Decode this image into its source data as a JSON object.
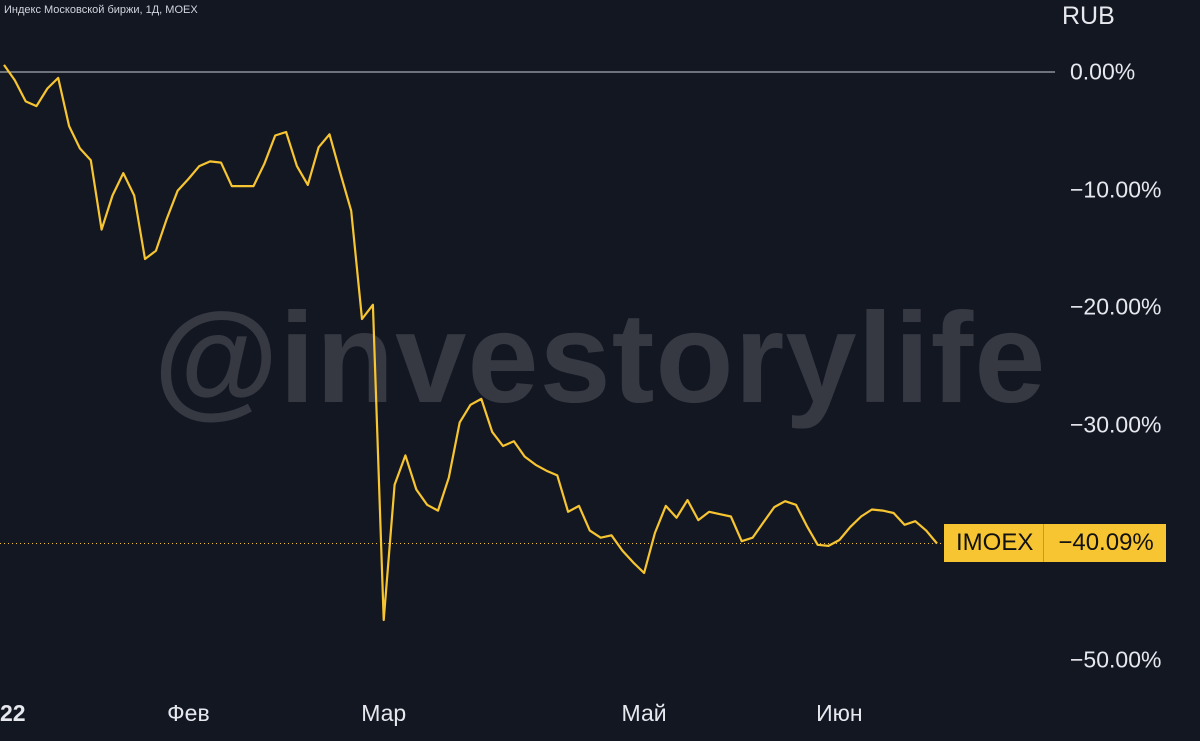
{
  "chart_data": {
    "type": "line",
    "title": "Индекс Московской биржи, 1Д, MOEX",
    "currency": "RUB",
    "watermark": "@investorylife",
    "ylim": [
      -52,
      3
    ],
    "y_ticks": [
      0,
      -10,
      -20,
      -30,
      -50
    ],
    "y_tick_labels": [
      "0.00%",
      "−10.00%",
      "−20.00%",
      "−30.00%",
      "−50.00%"
    ],
    "x_tick_labels": [
      {
        "label": "22",
        "index": 0
      },
      {
        "label": "Фев",
        "index": 17
      },
      {
        "label": "Мар",
        "index": 35
      },
      {
        "label": "Май",
        "index": 59
      },
      {
        "label": "Июн",
        "index": 77
      }
    ],
    "grid": false,
    "color": "#f7c531",
    "last_value": -40.09,
    "last_value_label": "−40.09%",
    "series": [
      {
        "name": "IMOEX",
        "values": [
          0.6,
          -0.7,
          -2.5,
          -2.9,
          -1.4,
          -0.5,
          -4.6,
          -6.5,
          -7.5,
          -13.4,
          -10.5,
          -8.6,
          -10.5,
          -15.9,
          -15.2,
          -12.5,
          -10.1,
          -9.1,
          -8.0,
          -7.6,
          -7.7,
          -9.7,
          -9.7,
          -9.7,
          -7.8,
          -5.4,
          -5.1,
          -8.0,
          -9.6,
          -6.4,
          -5.3,
          -8.6,
          -11.8,
          -21.0,
          -19.8,
          -46.6,
          -35.1,
          -32.6,
          -35.5,
          -36.8,
          -37.3,
          -34.5,
          -29.8,
          -28.3,
          -27.8,
          -30.6,
          -31.8,
          -31.4,
          -32.7,
          -33.4,
          -33.9,
          -34.3,
          -37.4,
          -36.9,
          -39.0,
          -39.6,
          -39.4,
          -40.7,
          -41.7,
          -42.6,
          -39.2,
          -36.9,
          -37.9,
          -36.4,
          -38.1,
          -37.4,
          -37.6,
          -37.8,
          -39.9,
          -39.6,
          -38.3,
          -37.0,
          -36.5,
          -36.8,
          -38.6,
          -40.2,
          -40.3,
          -39.8,
          -38.7,
          -37.8,
          -37.2,
          -37.3,
          -37.5,
          -38.5,
          -38.2,
          -39.0,
          -40.09
        ]
      }
    ]
  }
}
